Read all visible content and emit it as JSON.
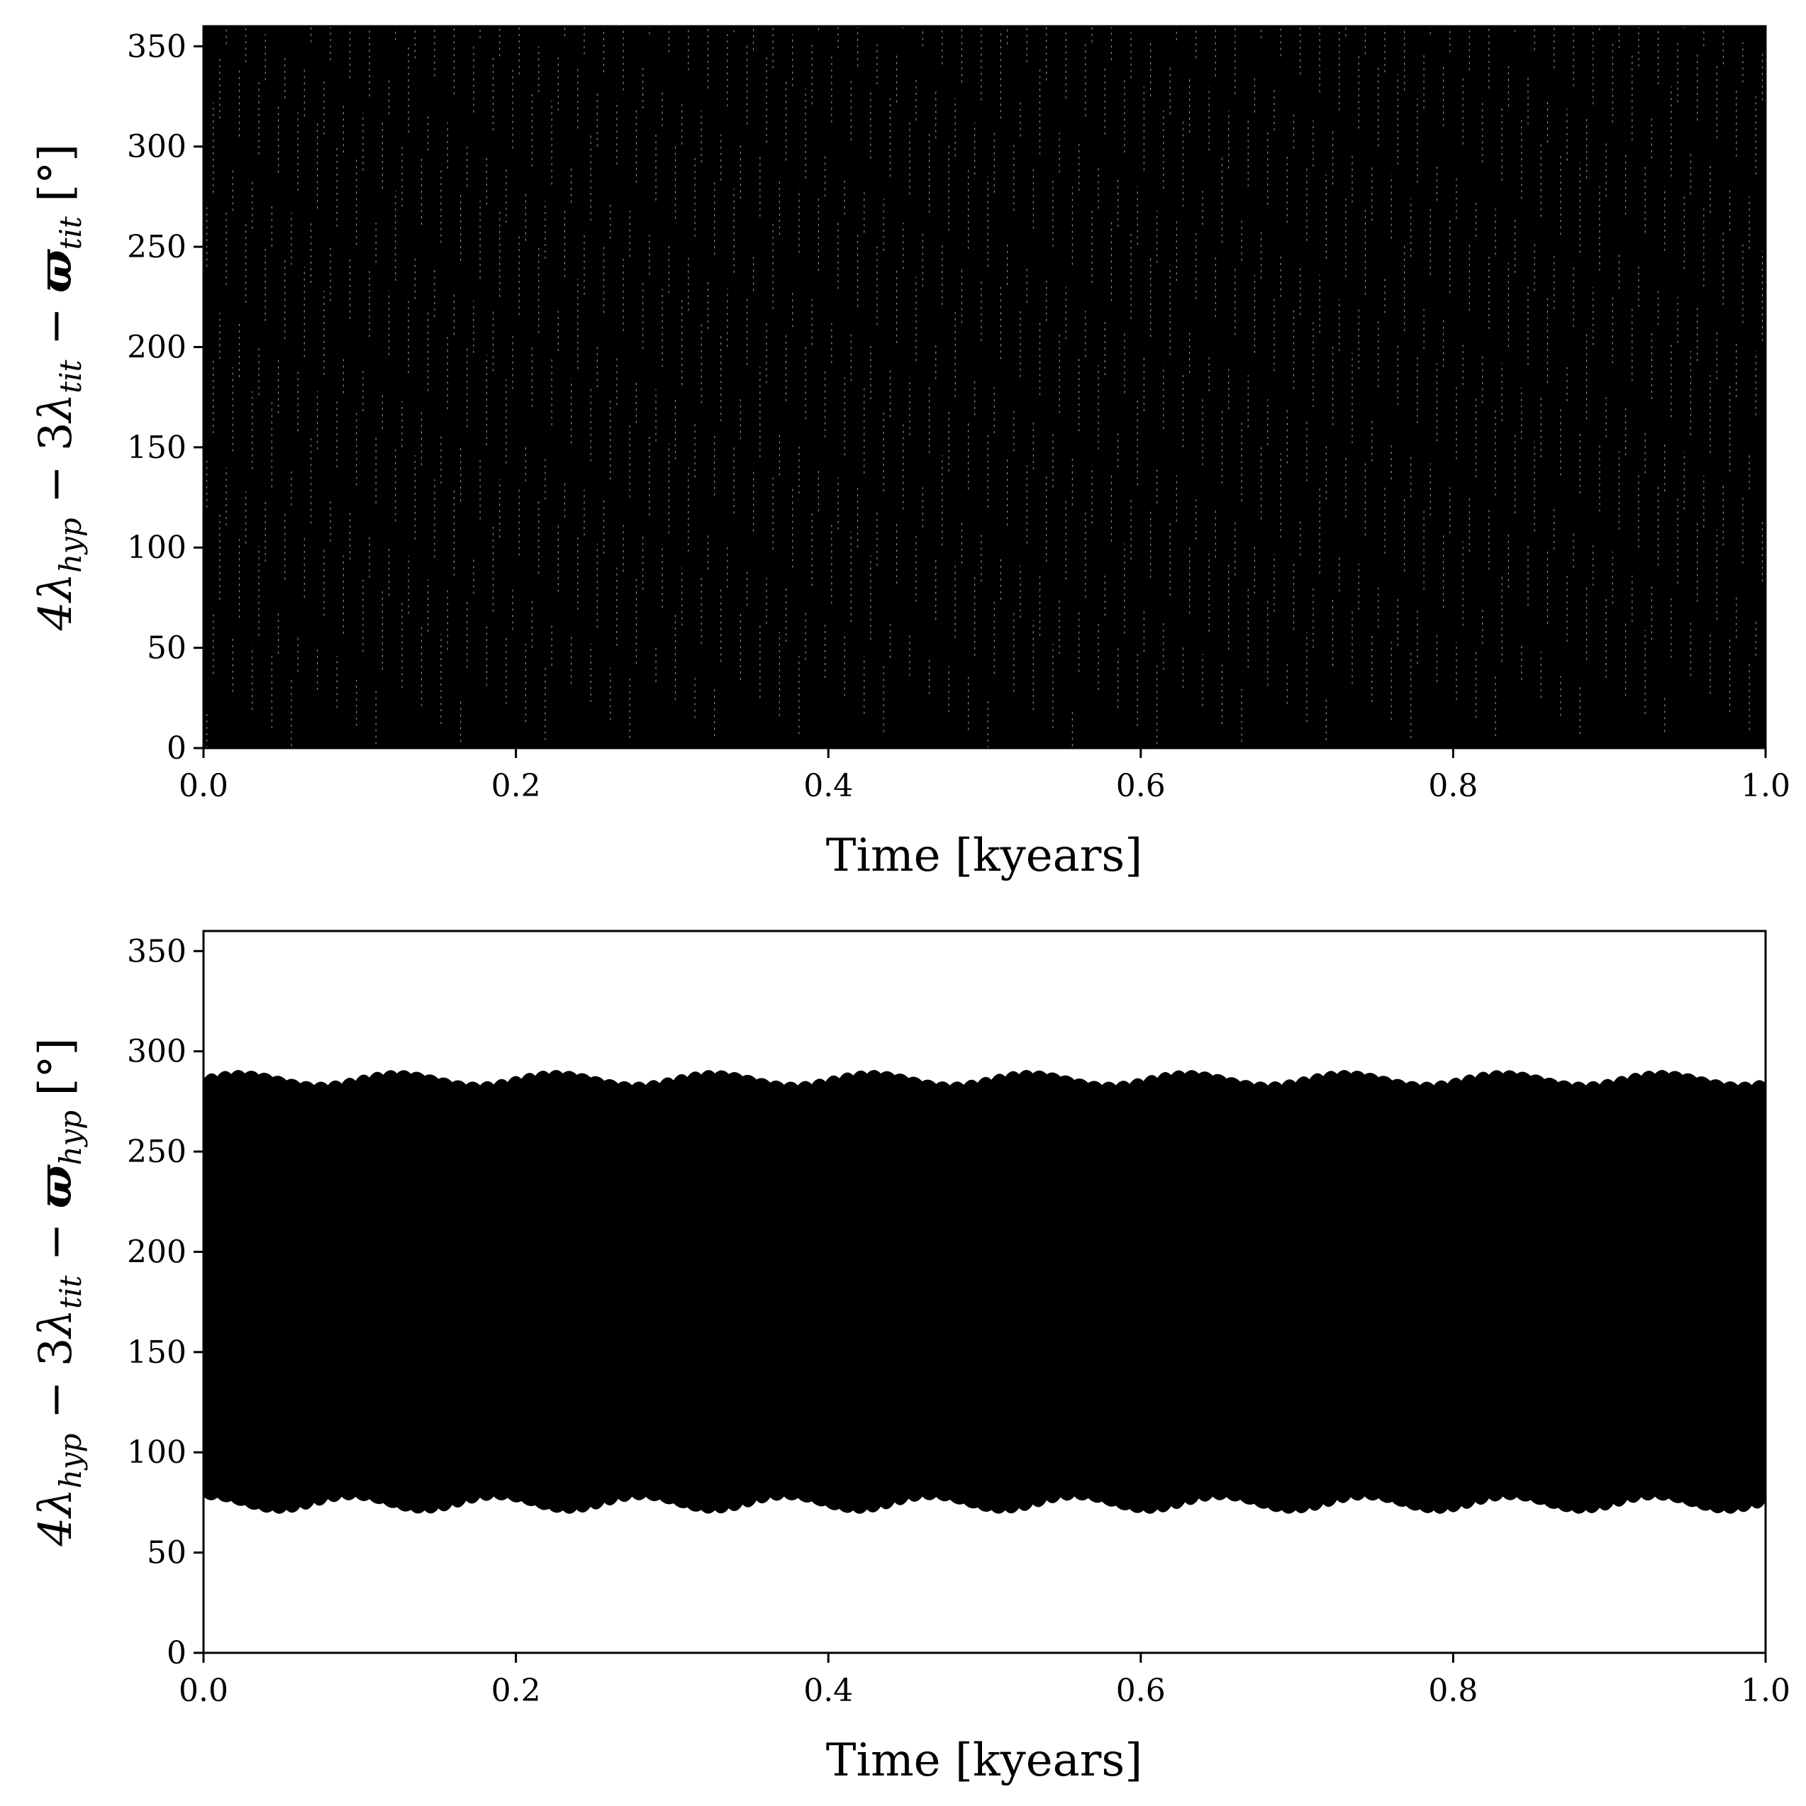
{
  "chart_data": [
    {
      "type": "scatter",
      "xlabel": "Time [kyears]",
      "ylabel": {
        "prefix": "4",
        "lambda_hyp": "λ",
        "sub_hyp": "hyp",
        "minus3": " − 3",
        "lambda_tit": "λ",
        "sub_tit": "tit",
        "minus_varpi": " − ",
        "varpi": "ϖ",
        "sub_varpi": "tit",
        "unit": " [°]"
      },
      "xlim": [
        0.0,
        1.0
      ],
      "ylim": [
        0,
        360
      ],
      "xticks": [
        0.0,
        0.2,
        0.4,
        0.6,
        0.8,
        1.0
      ],
      "xtick_labels": [
        "0.0",
        "0.2",
        "0.4",
        "0.6",
        "0.8",
        "1.0"
      ],
      "yticks": [
        0,
        50,
        100,
        150,
        200,
        250,
        300,
        350
      ],
      "ytick_labels": [
        "0",
        "50",
        "100",
        "150",
        "200",
        "250",
        "300",
        "350"
      ],
      "behavior": "circulating",
      "value_range": [
        0,
        360
      ],
      "series_color": "#000000",
      "grid": false
    },
    {
      "type": "scatter",
      "xlabel": "Time [kyears]",
      "ylabel": {
        "prefix": "4",
        "lambda_hyp": "λ",
        "sub_hyp": "hyp",
        "minus3": " − 3",
        "lambda_tit": "λ",
        "sub_tit": "tit",
        "minus_varpi": " − ",
        "varpi": "ϖ",
        "sub_varpi": "hyp",
        "unit": " [°]"
      },
      "xlim": [
        0.0,
        1.0
      ],
      "ylim": [
        0,
        360
      ],
      "xticks": [
        0.0,
        0.2,
        0.4,
        0.6,
        0.8,
        1.0
      ],
      "xtick_labels": [
        "0.0",
        "0.2",
        "0.4",
        "0.6",
        "0.8",
        "1.0"
      ],
      "yticks": [
        0,
        50,
        100,
        150,
        200,
        250,
        300,
        350
      ],
      "ytick_labels": [
        "0",
        "50",
        "100",
        "150",
        "200",
        "250",
        "300",
        "350"
      ],
      "behavior": "librating",
      "libration_center": 180,
      "libration_max_range": [
        283,
        289
      ],
      "libration_min_range": [
        71,
        78
      ],
      "series_color": "#000000",
      "grid": false
    }
  ]
}
